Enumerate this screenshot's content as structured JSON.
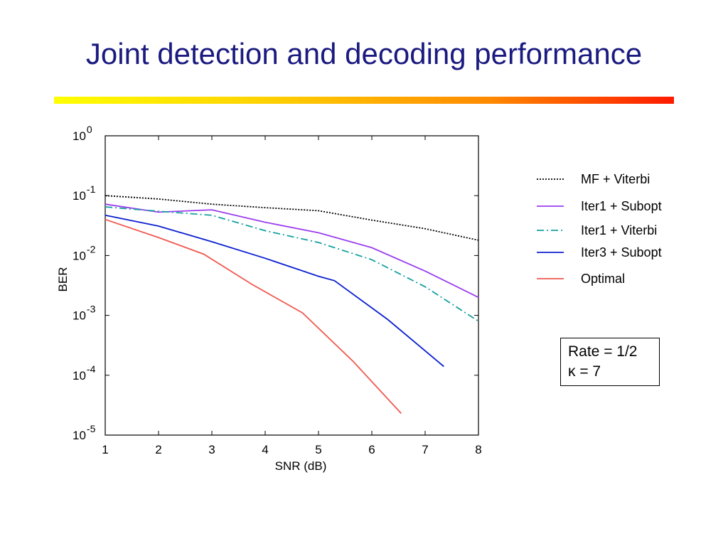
{
  "slide": {
    "title": "Joint detection and decoding performance"
  },
  "chart_data": {
    "type": "line",
    "xlabel": "SNR (dB)",
    "ylabel": "BER",
    "xlim": [
      1,
      8
    ],
    "ylim_log10": [
      -5,
      0
    ],
    "yscale": "log",
    "x_ticks": [
      "1",
      "2",
      "3",
      "4",
      "5",
      "6",
      "7",
      "8"
    ],
    "y_ticks": [
      {
        "base": "10",
        "exp": "0",
        "log10": 0
      },
      {
        "base": "10",
        "exp": "-1",
        "log10": -1
      },
      {
        "base": "10",
        "exp": "-2",
        "log10": -2
      },
      {
        "base": "10",
        "exp": "-3",
        "log10": -3
      },
      {
        "base": "10",
        "exp": "-4",
        "log10": -4
      },
      {
        "base": "10",
        "exp": "-5",
        "log10": -5
      }
    ],
    "legend_position": "right",
    "grid": false,
    "series": [
      {
        "name": "MF + Viterbi",
        "color": "#000000",
        "dash": "dotted",
        "x": [
          1,
          2,
          3,
          4,
          5,
          6,
          7,
          8
        ],
        "y": [
          0.1,
          0.088,
          0.072,
          0.063,
          0.056,
          0.039,
          0.028,
          0.018
        ]
      },
      {
        "name": "Iter1 + Subopt",
        "color": "#9b3dee",
        "dash": "solid",
        "x": [
          1,
          2,
          3,
          4,
          5,
          6,
          7,
          8
        ],
        "y": [
          0.072,
          0.053,
          0.058,
          0.036,
          0.024,
          0.0135,
          0.0055,
          0.002
        ]
      },
      {
        "name": "Iter1 + Viterbi",
        "color": "#15a0a0",
        "dash": "dashdot",
        "x": [
          1,
          2,
          3,
          4,
          5,
          6,
          7,
          8
        ],
        "y": [
          0.065,
          0.055,
          0.047,
          0.026,
          0.0165,
          0.0085,
          0.003,
          0.0008
        ]
      },
      {
        "name": "Iter3 + Subopt",
        "color": "#0b1fcf",
        "dash": "solid",
        "x": [
          1,
          2,
          3,
          4,
          5,
          5.3,
          6.3,
          7.35
        ],
        "y": [
          0.047,
          0.031,
          0.017,
          0.009,
          0.0045,
          0.0038,
          0.00085,
          0.00014
        ]
      },
      {
        "name": "Optimal",
        "color": "#ef5a50",
        "dash": "solid",
        "x": [
          1,
          2,
          2.85,
          3.75,
          4.7,
          5.65,
          6.55
        ],
        "y": [
          0.04,
          0.02,
          0.0105,
          0.0033,
          0.0011,
          0.00017,
          2.3e-05
        ]
      }
    ],
    "annotation": {
      "line1": "Rate = 1/2",
      "line2": "κ = 7"
    }
  }
}
